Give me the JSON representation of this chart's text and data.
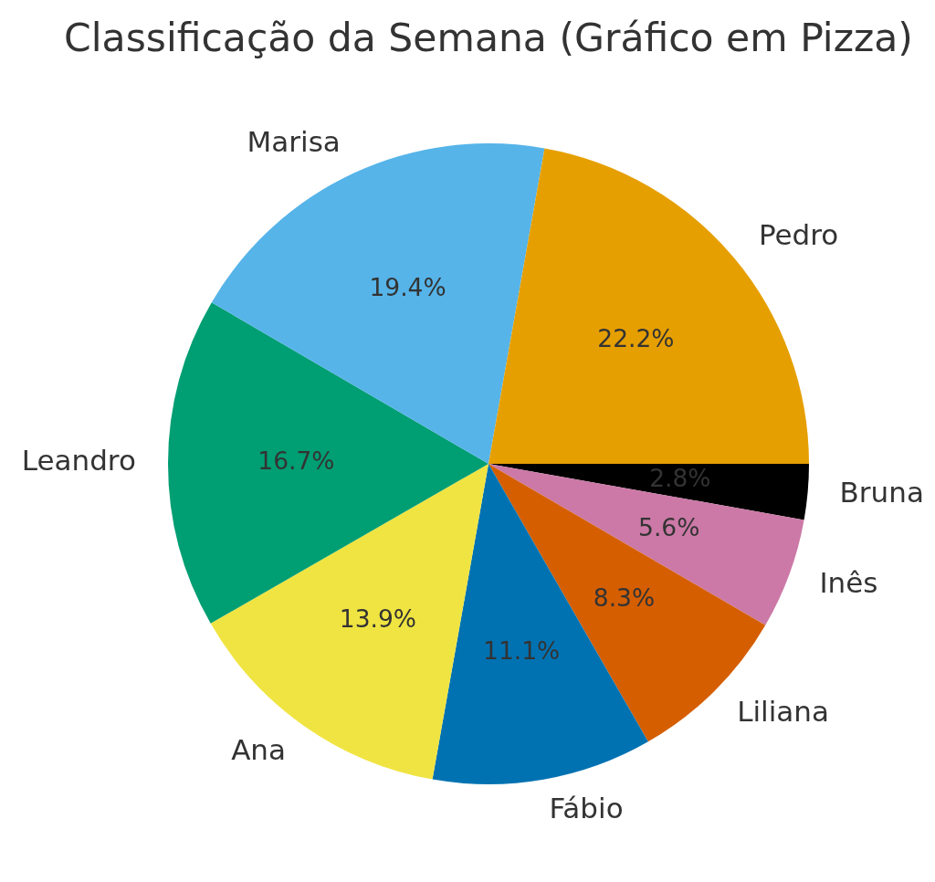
{
  "chart_data": {
    "type": "pie",
    "title": "Classificação da Semana (Gráfico em Pizza)",
    "categories": [
      "Pedro",
      "Marisa",
      "Leandro",
      "Ana",
      "Fábio",
      "Liliana",
      "Inês",
      "Bruna"
    ],
    "values": [
      22.2,
      19.4,
      16.7,
      13.9,
      11.1,
      8.3,
      5.6,
      2.8
    ],
    "colors": [
      "#e69f00",
      "#56b4e9",
      "#009e73",
      "#f0e442",
      "#0072b2",
      "#d55e00",
      "#cc79a7",
      "#000000"
    ],
    "value_labels": [
      "22.2%",
      "19.4%",
      "16.7%",
      "13.9%",
      "11.1%",
      "8.3%",
      "5.6%",
      "2.8%"
    ]
  }
}
